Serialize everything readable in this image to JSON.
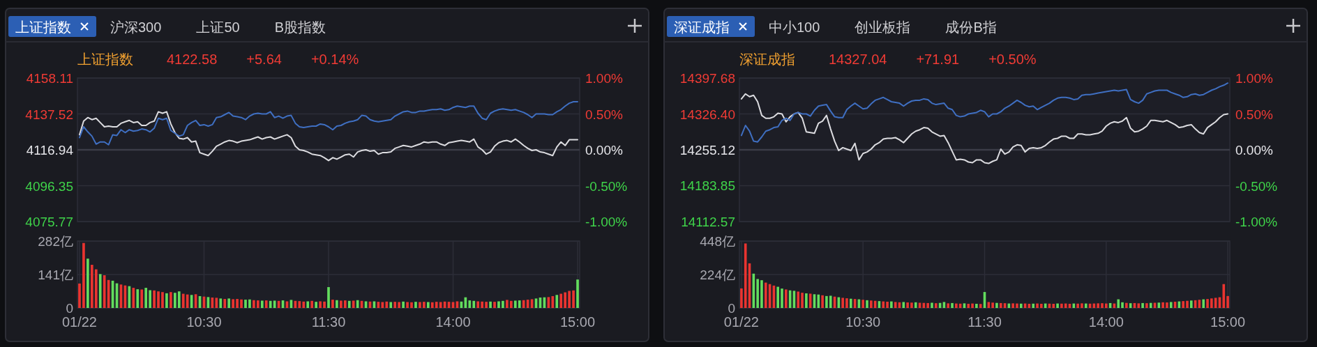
{
  "chart_data": [
    {
      "type": "line",
      "title": "上证指数",
      "annotations": [
        "上证指数",
        "沪深300",
        "上证50",
        "B股指数",
        "4122.58",
        "+5.64",
        "+0.14%"
      ],
      "ylim": [
        4075.77,
        4158.11
      ],
      "yticks": [
        4075.77,
        4096.35,
        4116.94,
        4137.52,
        4158.11
      ],
      "y2lim": [
        -1,
        1
      ],
      "y2ticks": [
        {
          "value": -1,
          "label": "-1.00%"
        },
        {
          "value": -0.5,
          "label": "-0.50%"
        },
        {
          "value": 0,
          "label": "0.00%"
        },
        {
          "value": 0.5,
          "label": "0.50%"
        },
        {
          "value": 1,
          "label": "1.00%"
        }
      ],
      "grid": true,
      "tick_labels": "y",
      "ref_lines": [
        {
          "axis": "y2",
          "value": 0,
          "color": "#3b3c47"
        }
      ],
      "series": [
        {
          "type": "line",
          "axis": "y2",
          "color": "#dcdce0",
          "values": [
            0.21,
            0.4,
            0.45,
            0.42,
            0.44,
            0.38,
            0.32,
            0.33,
            0.32,
            0.32,
            0.37,
            0.39,
            0.41,
            0.38,
            0.39,
            0.34,
            0.34,
            0.38,
            0.4,
            0.53,
            0.51,
            0.53,
            0.36,
            0.24,
            0.16,
            0.15,
            0.17,
            0.11,
            0.12,
            -0.04,
            -0.06,
            -0.08,
            -0.02,
            0.05,
            0.08,
            0.11,
            0.13,
            0.12,
            0.1,
            0.12,
            0.13,
            0.14,
            0.16,
            0.18,
            0.15,
            0.17,
            0.18,
            0.15,
            0.17,
            0.19,
            0.21,
            0.17,
            0.05,
            0.0,
            -0.01,
            -0.03,
            -0.06,
            -0.07,
            -0.08,
            -0.11,
            -0.15,
            -0.11,
            -0.13,
            -0.1,
            -0.07,
            -0.06,
            -0.1,
            -0.03,
            -0.01,
            0.0,
            -0.02,
            -0.01,
            -0.06,
            -0.04,
            -0.04,
            -0.03,
            0.02,
            0.04,
            0.06,
            0.05,
            0.04,
            0.06,
            0.08,
            0.11,
            0.1,
            0.11,
            0.11,
            0.08,
            0.06,
            0.1,
            0.11,
            0.12,
            0.13,
            0.12,
            0.11,
            0.15,
            0.04,
            0.0,
            -0.06,
            -0.03,
            0.05,
            0.1,
            0.12,
            0.13,
            0.11,
            0.15,
            0.11,
            0.06,
            0.02,
            -0.01,
            0.0,
            -0.03,
            -0.04,
            -0.06,
            -0.08,
            0.04,
            0.11,
            0.06,
            0.14,
            0.14,
            0.14
          ]
        },
        {
          "type": "line",
          "axis": "y2",
          "color": "#3f6fc2",
          "values": [
            0.17,
            0.32,
            0.25,
            0.19,
            0.08,
            0.11,
            0.11,
            0.07,
            0.21,
            0.2,
            0.28,
            0.24,
            0.28,
            0.26,
            0.27,
            0.29,
            0.28,
            0.25,
            0.3,
            0.44,
            0.42,
            0.44,
            0.27,
            0.23,
            0.19,
            0.21,
            0.34,
            0.38,
            0.41,
            0.34,
            0.35,
            0.33,
            0.35,
            0.45,
            0.46,
            0.49,
            0.52,
            0.47,
            0.46,
            0.45,
            0.42,
            0.47,
            0.5,
            0.51,
            0.5,
            0.5,
            0.53,
            0.45,
            0.47,
            0.44,
            0.47,
            0.48,
            0.37,
            0.32,
            0.31,
            0.32,
            0.33,
            0.33,
            0.36,
            0.35,
            0.32,
            0.28,
            0.33,
            0.34,
            0.37,
            0.39,
            0.4,
            0.42,
            0.48,
            0.47,
            0.42,
            0.4,
            0.39,
            0.4,
            0.41,
            0.42,
            0.47,
            0.5,
            0.53,
            0.54,
            0.52,
            0.52,
            0.54,
            0.54,
            0.55,
            0.56,
            0.56,
            0.57,
            0.55,
            0.56,
            0.59,
            0.61,
            0.6,
            0.59,
            0.61,
            0.61,
            0.51,
            0.44,
            0.42,
            0.51,
            0.54,
            0.56,
            0.57,
            0.56,
            0.55,
            0.56,
            0.54,
            0.52,
            0.49,
            0.45,
            0.5,
            0.5,
            0.5,
            0.49,
            0.49,
            0.53,
            0.56,
            0.61,
            0.65,
            0.67,
            0.67
          ]
        }
      ]
    },
    {
      "type": "bar",
      "categories": [
        "01/22",
        null,
        null,
        null,
        null,
        null,
        null,
        null,
        null,
        null,
        null,
        null,
        null,
        null,
        null,
        null,
        null,
        null,
        null,
        null,
        null,
        null,
        null,
        null,
        null,
        null,
        null,
        null,
        null,
        null,
        "10:30",
        null,
        null,
        null,
        null,
        null,
        null,
        null,
        null,
        null,
        null,
        null,
        null,
        null,
        null,
        null,
        null,
        null,
        null,
        null,
        null,
        null,
        null,
        null,
        null,
        null,
        null,
        null,
        null,
        null,
        "11:30",
        null,
        null,
        null,
        null,
        null,
        null,
        null,
        null,
        null,
        null,
        null,
        null,
        null,
        null,
        null,
        null,
        null,
        null,
        null,
        null,
        null,
        null,
        null,
        null,
        null,
        null,
        null,
        null,
        null,
        "14:00",
        null,
        null,
        null,
        null,
        null,
        null,
        null,
        null,
        null,
        null,
        null,
        null,
        null,
        null,
        null,
        null,
        null,
        null,
        null,
        null,
        null,
        null,
        null,
        null,
        null,
        null,
        null,
        null,
        null,
        "15:00"
      ],
      "ylim": [
        0,
        282
      ],
      "yticks": [
        0,
        {
          "value": 141,
          "label": "141亿"
        },
        {
          "value": 282,
          "label": "282亿"
        }
      ],
      "grid": true,
      "values": [
        103,
        274,
        208,
        182,
        163,
        143,
        138,
        118,
        115,
        104,
        99,
        95,
        92,
        85,
        79,
        78,
        85,
        75,
        74,
        70,
        67,
        62,
        67,
        64,
        70,
        60,
        57,
        55,
        58,
        50,
        48,
        46,
        44,
        43,
        40,
        38,
        40,
        37,
        38,
        36,
        35,
        36,
        33,
        32,
        31,
        32,
        30,
        31,
        30,
        32,
        28,
        34,
        30,
        29,
        27,
        28,
        30,
        26,
        28,
        27,
        88,
        35,
        33,
        31,
        32,
        30,
        31,
        33,
        30,
        28,
        27,
        28,
        26,
        25,
        27,
        25,
        26,
        25,
        27,
        25,
        24,
        26,
        25,
        26,
        25,
        24,
        26,
        25,
        27,
        26,
        25,
        28,
        27,
        45,
        32,
        30,
        28,
        27,
        26,
        27,
        26,
        28,
        30,
        34,
        30,
        31,
        32,
        33,
        35,
        37,
        40,
        44,
        45,
        46,
        50,
        55,
        60,
        66,
        72,
        74,
        120
      ],
      "colors": [
        "#ea3430",
        "#ea3430",
        "#63dd5e",
        "#ea3430",
        "#ea3430",
        "#63dd5e",
        "#ea3430",
        "#ea3430",
        "#63dd5e",
        "#63dd5e",
        "#ea3430",
        "#ea3430",
        "#63dd5e",
        "#ea3430",
        "#63dd5e",
        "#ea3430",
        "#63dd5e",
        "#63dd5e",
        "#ea3430",
        "#ea3430",
        "#ea3430",
        "#63dd5e",
        "#ea3430",
        "#63dd5e",
        "#63dd5e",
        "#ea3430",
        "#ea3430",
        "#63dd5e",
        "#ea3430",
        "#63dd5e",
        "#ea3430",
        "#63dd5e",
        "#ea3430",
        "#ea3430",
        "#63dd5e",
        "#ea3430",
        "#63dd5e",
        "#ea3430",
        "#ea3430",
        "#ea3430",
        "#63dd5e",
        "#63dd5e",
        "#ea3430",
        "#ea3430",
        "#63dd5e",
        "#ea3430",
        "#63dd5e",
        "#63dd5e",
        "#ea3430",
        "#63dd5e",
        "#ea3430",
        "#63dd5e",
        "#ea3430",
        "#ea3430",
        "#ea3430",
        "#63dd5e",
        "#ea3430",
        "#63dd5e",
        "#ea3430",
        "#ea3430",
        "#63dd5e",
        "#ea3430",
        "#63dd5e",
        "#ea3430",
        "#ea3430",
        "#63dd5e",
        "#ea3430",
        "#63dd5e",
        "#ea3430",
        "#63dd5e",
        "#ea3430",
        "#63dd5e",
        "#ea3430",
        "#ea3430",
        "#ea3430",
        "#63dd5e",
        "#ea3430",
        "#ea3430",
        "#63dd5e",
        "#ea3430",
        "#ea3430",
        "#63dd5e",
        "#ea3430",
        "#ea3430",
        "#63dd5e",
        "#ea3430",
        "#ea3430",
        "#ea3430",
        "#ea3430",
        "#ea3430",
        "#ea3430",
        "#ea3430",
        "#63dd5e",
        "#63dd5e",
        "#63dd5e",
        "#63dd5e",
        "#ea3430",
        "#ea3430",
        "#ea3430",
        "#63dd5e",
        "#ea3430",
        "#63dd5e",
        "#63dd5e",
        "#ea3430",
        "#ea3430",
        "#63dd5e",
        "#63dd5e",
        "#ea3430",
        "#ea3430",
        "#ea3430",
        "#63dd5e",
        "#63dd5e",
        "#63dd5e",
        "#ea3430",
        "#ea3430",
        "#63dd5e",
        "#ea3430",
        "#ea3430",
        "#ea3430",
        "#ea3430",
        "#63dd5e"
      ]
    },
    {
      "type": "line",
      "title": "深证成指",
      "annotations": [
        "深证成指",
        "中小100",
        "创业板指",
        "成份B指",
        "14327.04",
        "+71.91",
        "+0.50%"
      ],
      "ylim": [
        14112.57,
        14397.68
      ],
      "yticks": [
        14112.57,
        14183.85,
        14255.12,
        {
          "value": 14326.4,
          "label": "14326.40"
        },
        14397.68
      ],
      "y2lim": [
        -1,
        1
      ],
      "y2ticks": [
        {
          "value": -1,
          "label": "-1.00%"
        },
        {
          "value": -0.5,
          "label": "-0.50%"
        },
        {
          "value": 0,
          "label": "0.00%"
        },
        {
          "value": 0.5,
          "label": "0.50%"
        },
        {
          "value": 1,
          "label": "1.00%"
        }
      ],
      "grid": true,
      "tick_labels": "y",
      "ref_lines": [
        {
          "axis": "y2",
          "value": 0,
          "color": "#3b3c47"
        }
      ],
      "series": [
        {
          "type": "line",
          "axis": "y2",
          "color": "#dcdce0",
          "values": [
            0.71,
            0.78,
            0.74,
            0.76,
            0.67,
            0.48,
            0.44,
            0.44,
            0.46,
            0.51,
            0.5,
            0.39,
            0.46,
            0.5,
            0.52,
            0.44,
            0.25,
            0.24,
            0.23,
            0.37,
            0.4,
            0.48,
            0.29,
            0.12,
            -0.01,
            0.03,
            0.01,
            -0.01,
            0.09,
            -0.14,
            -0.05,
            -0.03,
            0.01,
            0.07,
            0.1,
            0.15,
            0.16,
            0.16,
            0.17,
            0.14,
            0.1,
            0.16,
            0.22,
            0.26,
            0.28,
            0.31,
            0.3,
            0.25,
            0.22,
            0.19,
            0.2,
            0.1,
            -0.02,
            -0.14,
            -0.13,
            -0.14,
            -0.17,
            -0.18,
            -0.14,
            -0.14,
            -0.18,
            -0.19,
            -0.16,
            -0.14,
            0.01,
            -0.06,
            -0.03,
            0.04,
            0.07,
            0.06,
            -0.03,
            0.02,
            0.03,
            0.02,
            0.03,
            0.06,
            0.11,
            0.15,
            0.16,
            0.19,
            0.19,
            0.16,
            0.16,
            0.22,
            0.22,
            0.21,
            0.21,
            0.22,
            0.23,
            0.26,
            0.33,
            0.37,
            0.39,
            0.38,
            0.4,
            0.45,
            0.3,
            0.25,
            0.26,
            0.29,
            0.33,
            0.41,
            0.41,
            0.4,
            0.39,
            0.41,
            0.38,
            0.35,
            0.31,
            0.32,
            0.34,
            0.35,
            0.29,
            0.24,
            0.22,
            0.31,
            0.35,
            0.39,
            0.45,
            0.49,
            0.5
          ]
        },
        {
          "type": "line",
          "axis": "y2",
          "color": "#3f6fc2",
          "values": [
            0.2,
            0.34,
            0.26,
            0.12,
            0.11,
            0.18,
            0.26,
            0.28,
            0.31,
            0.32,
            0.41,
            0.44,
            0.41,
            0.5,
            0.52,
            0.5,
            0.5,
            0.47,
            0.55,
            0.61,
            0.62,
            0.63,
            0.54,
            0.46,
            0.45,
            0.45,
            0.56,
            0.61,
            0.65,
            0.61,
            0.57,
            0.58,
            0.64,
            0.69,
            0.71,
            0.73,
            0.7,
            0.67,
            0.66,
            0.65,
            0.61,
            0.65,
            0.68,
            0.69,
            0.69,
            0.71,
            0.7,
            0.65,
            0.63,
            0.64,
            0.65,
            0.58,
            0.56,
            0.48,
            0.46,
            0.47,
            0.5,
            0.51,
            0.52,
            0.55,
            0.53,
            0.46,
            0.5,
            0.5,
            0.53,
            0.58,
            0.61,
            0.65,
            0.69,
            0.66,
            0.62,
            0.6,
            0.61,
            0.56,
            0.59,
            0.62,
            0.65,
            0.69,
            0.72,
            0.73,
            0.73,
            0.72,
            0.7,
            0.71,
            0.76,
            0.77,
            0.77,
            0.78,
            0.79,
            0.8,
            0.81,
            0.82,
            0.83,
            0.82,
            0.83,
            0.84,
            0.7,
            0.67,
            0.65,
            0.69,
            0.78,
            0.8,
            0.82,
            0.83,
            0.83,
            0.83,
            0.8,
            0.78,
            0.76,
            0.73,
            0.74,
            0.77,
            0.78,
            0.76,
            0.77,
            0.8,
            0.83,
            0.85,
            0.88,
            0.9,
            0.93
          ]
        }
      ]
    },
    {
      "type": "bar",
      "categories": [
        "01/22",
        null,
        null,
        null,
        null,
        null,
        null,
        null,
        null,
        null,
        null,
        null,
        null,
        null,
        null,
        null,
        null,
        null,
        null,
        null,
        null,
        null,
        null,
        null,
        null,
        null,
        null,
        null,
        null,
        null,
        "10:30",
        null,
        null,
        null,
        null,
        null,
        null,
        null,
        null,
        null,
        null,
        null,
        null,
        null,
        null,
        null,
        null,
        null,
        null,
        null,
        null,
        null,
        null,
        null,
        null,
        null,
        null,
        null,
        null,
        null,
        "11:30",
        null,
        null,
        null,
        null,
        null,
        null,
        null,
        null,
        null,
        null,
        null,
        null,
        null,
        null,
        null,
        null,
        null,
        null,
        null,
        null,
        null,
        null,
        null,
        null,
        null,
        null,
        null,
        null,
        null,
        "14:00",
        null,
        null,
        null,
        null,
        null,
        null,
        null,
        null,
        null,
        null,
        null,
        null,
        null,
        null,
        null,
        null,
        null,
        null,
        null,
        null,
        null,
        null,
        null,
        null,
        null,
        null,
        null,
        null,
        null,
        "15:00"
      ],
      "ylim": [
        0,
        448
      ],
      "yticks": [
        0,
        {
          "value": 224,
          "label": "224亿"
        },
        {
          "value": 448,
          "label": "448亿"
        }
      ],
      "grid": true,
      "values": [
        131,
        432,
        299,
        230,
        194,
        186,
        170,
        160,
        150,
        142,
        130,
        124,
        118,
        115,
        110,
        102,
        98,
        96,
        92,
        90,
        85,
        80,
        82,
        76,
        72,
        68,
        65,
        62,
        60,
        58,
        55,
        52,
        50,
        48,
        46,
        44,
        42,
        44,
        40,
        38,
        40,
        37,
        36,
        38,
        35,
        34,
        33,
        35,
        32,
        34,
        40,
        31,
        33,
        30,
        29,
        31,
        28,
        30,
        28,
        27,
        107,
        40,
        36,
        34,
        33,
        32,
        30,
        31,
        30,
        29,
        30,
        28,
        29,
        30,
        28,
        30,
        29,
        28,
        30,
        29,
        30,
        28,
        30,
        29,
        31,
        30,
        29,
        30,
        31,
        32,
        30,
        33,
        30,
        58,
        38,
        34,
        32,
        33,
        31,
        33,
        32,
        34,
        35,
        36,
        38,
        37,
        40,
        42,
        44,
        46,
        48,
        50,
        52,
        55,
        58,
        60,
        64,
        68,
        72,
        160,
        80
      ],
      "colors": [
        "#ea3430",
        "#ea3430",
        "#ea3430",
        "#63dd5e",
        "#63dd5e",
        "#63dd5e",
        "#ea3430",
        "#ea3430",
        "#ea3430",
        "#63dd5e",
        "#63dd5e",
        "#ea3430",
        "#63dd5e",
        "#63dd5e",
        "#ea3430",
        "#ea3430",
        "#63dd5e",
        "#ea3430",
        "#63dd5e",
        "#63dd5e",
        "#ea3430",
        "#63dd5e",
        "#63dd5e",
        "#ea3430",
        "#63dd5e",
        "#ea3430",
        "#ea3430",
        "#63dd5e",
        "#ea3430",
        "#63dd5e",
        "#ea3430",
        "#63dd5e",
        "#ea3430",
        "#ea3430",
        "#63dd5e",
        "#ea3430",
        "#ea3430",
        "#63dd5e",
        "#ea3430",
        "#ea3430",
        "#63dd5e",
        "#ea3430",
        "#ea3430",
        "#63dd5e",
        "#ea3430",
        "#ea3430",
        "#ea3430",
        "#63dd5e",
        "#ea3430",
        "#63dd5e",
        "#63dd5e",
        "#ea3430",
        "#63dd5e",
        "#ea3430",
        "#ea3430",
        "#63dd5e",
        "#ea3430",
        "#ea3430",
        "#63dd5e",
        "#ea3430",
        "#63dd5e",
        "#ea3430",
        "#ea3430",
        "#63dd5e",
        "#ea3430",
        "#ea3430",
        "#63dd5e",
        "#ea3430",
        "#ea3430",
        "#63dd5e",
        "#ea3430",
        "#ea3430",
        "#63dd5e",
        "#ea3430",
        "#ea3430",
        "#63dd5e",
        "#ea3430",
        "#ea3430",
        "#63dd5e",
        "#ea3430",
        "#ea3430",
        "#ea3430",
        "#63dd5e",
        "#ea3430",
        "#ea3430",
        "#63dd5e",
        "#ea3430",
        "#ea3430",
        "#ea3430",
        "#ea3430",
        "#ea3430",
        "#63dd5e",
        "#ea3430",
        "#63dd5e",
        "#63dd5e",
        "#ea3430",
        "#63dd5e",
        "#ea3430",
        "#ea3430",
        "#63dd5e",
        "#ea3430",
        "#63dd5e",
        "#ea3430",
        "#63dd5e",
        "#ea3430",
        "#ea3430",
        "#63dd5e",
        "#ea3430",
        "#63dd5e",
        "#ea3430",
        "#ea3430",
        "#63dd5e",
        "#ea3430",
        "#ea3430",
        "#63dd5e",
        "#ea3430",
        "#ea3430",
        "#ea3430",
        "#ea3430",
        "#ea3430",
        "#ea3430"
      ]
    }
  ]
}
